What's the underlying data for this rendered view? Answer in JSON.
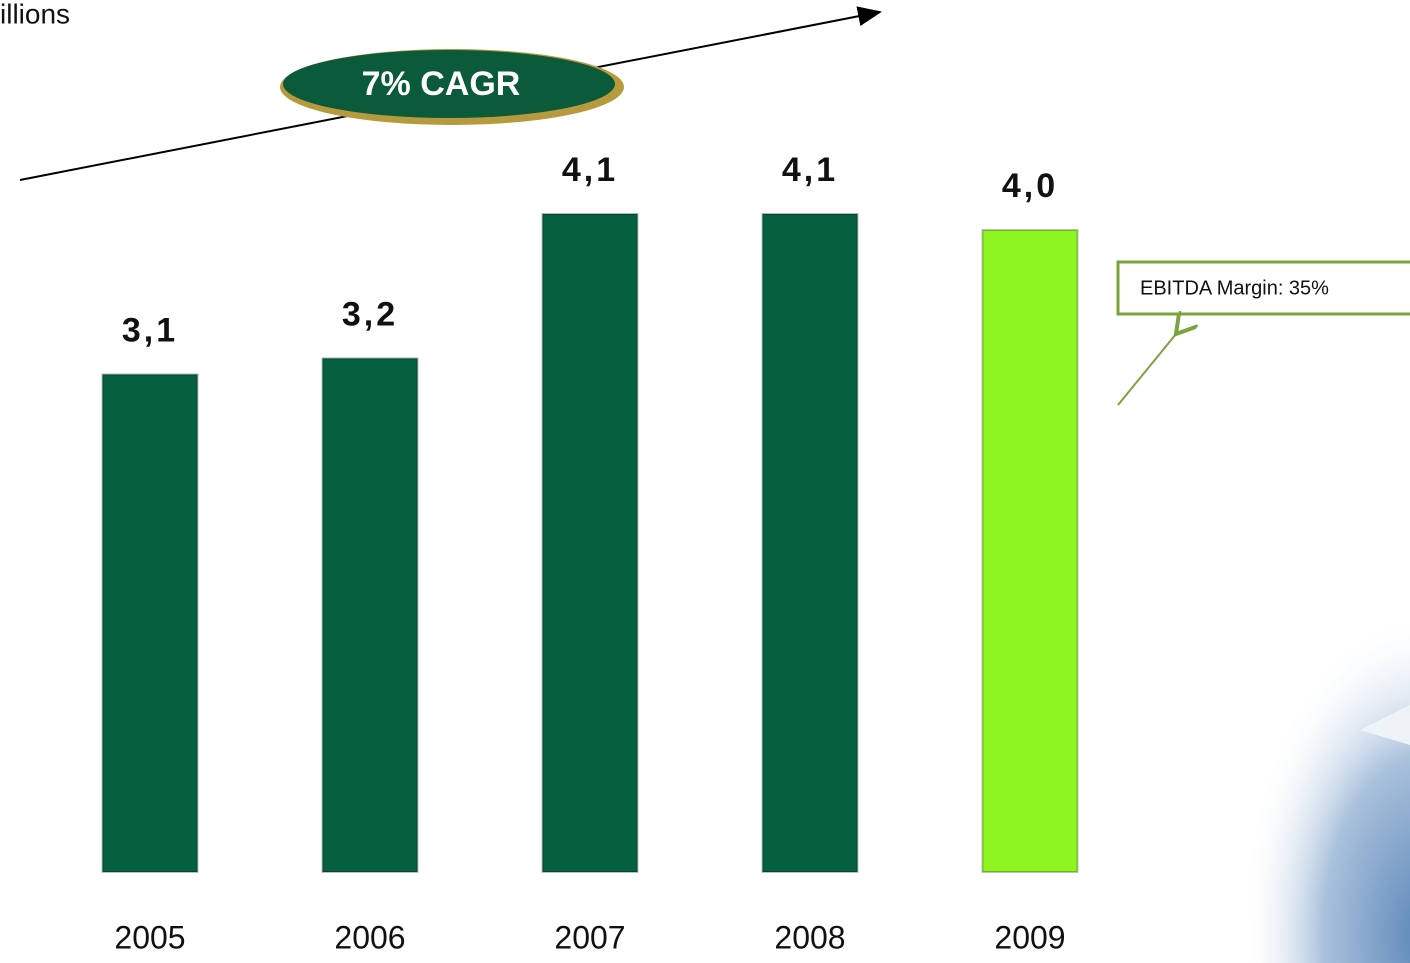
{
  "chart_data": {
    "type": "bar",
    "subtitle": "illions",
    "annotations": [
      "7% CAGR",
      "EBITDA Margin: 35%"
    ],
    "categories": [
      "2005",
      "2006",
      "2007",
      "2008",
      "2009"
    ],
    "values": [
      3.1,
      3.2,
      4.1,
      4.1,
      4.0
    ],
    "value_labels": [
      "3,1",
      "3,2",
      "4,1",
      "4,1",
      "4,0"
    ],
    "colors": [
      "#05603f",
      "#05603f",
      "#05603f",
      "#05603f",
      "#8ef520"
    ]
  }
}
